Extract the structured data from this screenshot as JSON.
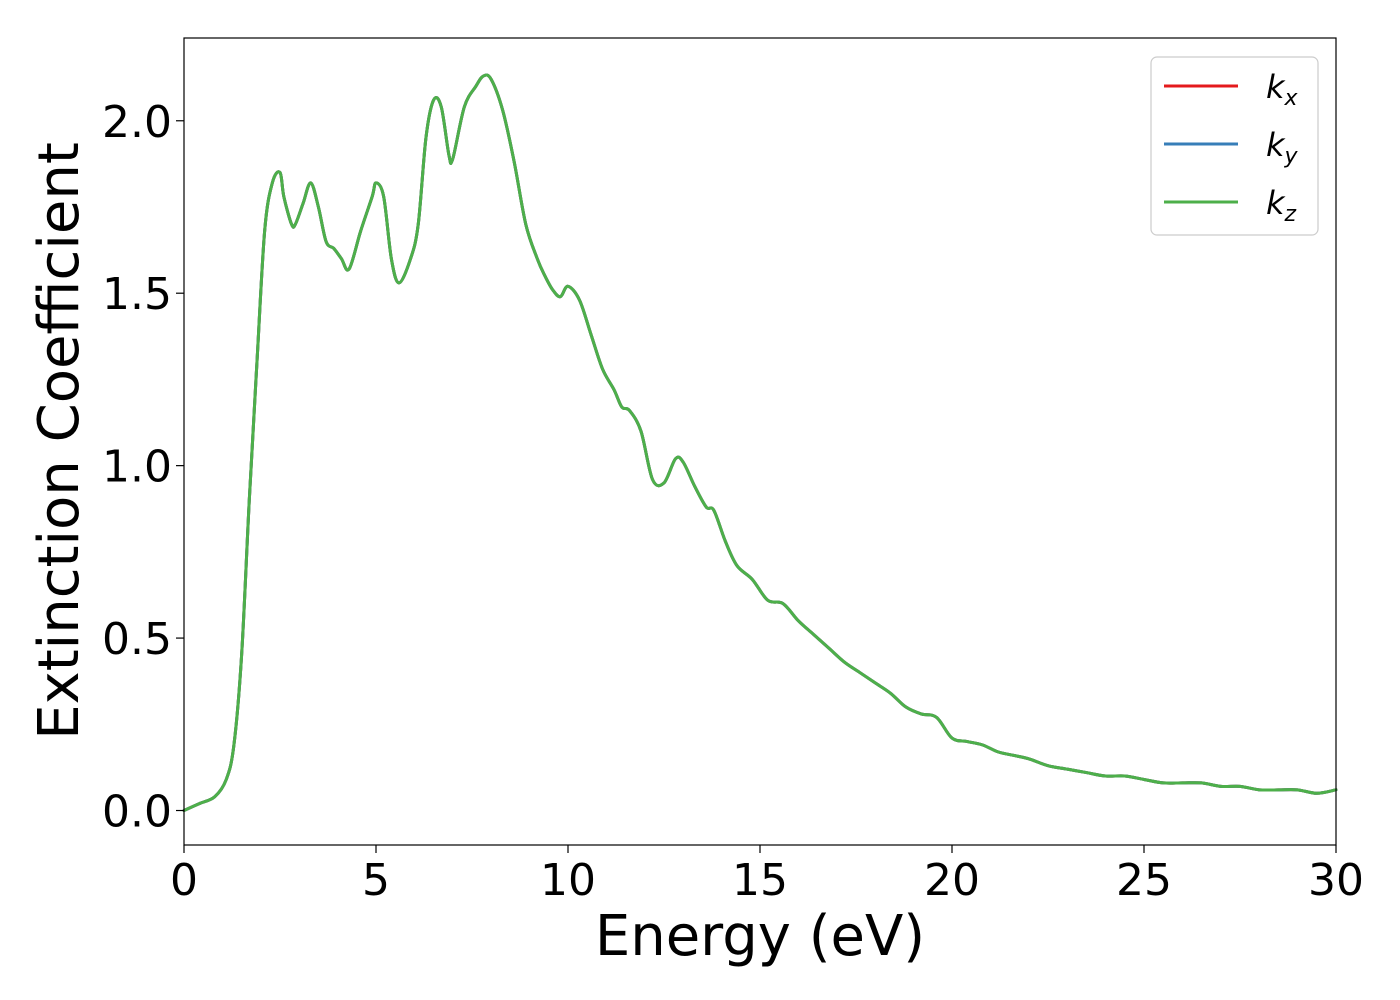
{
  "chart_data": {
    "type": "line",
    "xlabel": "Energy (eV)",
    "ylabel": "Extinction Coefficient",
    "xlim": [
      0,
      30
    ],
    "ylim": [
      -0.1,
      2.24
    ],
    "xticks": [
      0,
      5,
      10,
      15,
      20,
      25,
      30
    ],
    "yticks": [
      0.0,
      0.5,
      1.0,
      1.5,
      2.0
    ],
    "xtick_labels": [
      "0",
      "5",
      "10",
      "15",
      "20",
      "25",
      "30"
    ],
    "ytick_labels": [
      "0.0",
      "0.5",
      "1.0",
      "1.5",
      "2.0"
    ],
    "grid": false,
    "legend_position": "top-right",
    "x": [
      0,
      0.4,
      0.8,
      1.1,
      1.3,
      1.5,
      1.7,
      1.9,
      2.1,
      2.3,
      2.5,
      2.6,
      2.8,
      2.9,
      3.1,
      3.3,
      3.5,
      3.7,
      3.9,
      4.1,
      4.3,
      4.6,
      4.9,
      5.0,
      5.2,
      5.4,
      5.6,
      5.9,
      6.1,
      6.3,
      6.5,
      6.7,
      6.9,
      7.0,
      7.3,
      7.6,
      7.8,
      8.0,
      8.3,
      8.6,
      8.9,
      9.2,
      9.4,
      9.6,
      9.8,
      10.0,
      10.3,
      10.6,
      10.9,
      11.2,
      11.4,
      11.6,
      11.9,
      12.2,
      12.5,
      12.8,
      13.0,
      13.3,
      13.6,
      13.8,
      14.1,
      14.4,
      14.8,
      15.2,
      15.6,
      16.0,
      16.4,
      16.8,
      17.2,
      17.6,
      18.0,
      18.4,
      18.8,
      19.2,
      19.6,
      20.0,
      20.4,
      20.8,
      21.2,
      21.6,
      22.0,
      22.5,
      23.0,
      23.5,
      24.0,
      24.5,
      25.0,
      25.5,
      26.0,
      26.5,
      27.0,
      27.5,
      28.0,
      28.5,
      29.0,
      29.5,
      30.0
    ],
    "series": [
      {
        "name": "k_x",
        "color": "#e41a1c",
        "values": [
          0.0,
          0.02,
          0.04,
          0.09,
          0.19,
          0.45,
          0.9,
          1.3,
          1.68,
          1.82,
          1.85,
          1.78,
          1.7,
          1.7,
          1.76,
          1.82,
          1.75,
          1.65,
          1.63,
          1.6,
          1.57,
          1.68,
          1.78,
          1.82,
          1.78,
          1.6,
          1.53,
          1.6,
          1.7,
          1.95,
          2.06,
          2.04,
          1.9,
          1.89,
          2.04,
          2.1,
          2.13,
          2.12,
          2.03,
          1.88,
          1.7,
          1.6,
          1.55,
          1.51,
          1.49,
          1.52,
          1.48,
          1.38,
          1.28,
          1.22,
          1.17,
          1.16,
          1.1,
          0.96,
          0.95,
          1.02,
          1.01,
          0.94,
          0.88,
          0.87,
          0.78,
          0.71,
          0.67,
          0.61,
          0.6,
          0.55,
          0.51,
          0.47,
          0.43,
          0.4,
          0.37,
          0.34,
          0.3,
          0.28,
          0.27,
          0.21,
          0.2,
          0.19,
          0.17,
          0.16,
          0.15,
          0.13,
          0.12,
          0.11,
          0.1,
          0.1,
          0.09,
          0.08,
          0.08,
          0.08,
          0.07,
          0.07,
          0.06,
          0.06,
          0.06,
          0.05,
          0.06
        ]
      },
      {
        "name": "k_y",
        "color": "#377eb8",
        "values": [
          0.0,
          0.02,
          0.04,
          0.09,
          0.19,
          0.45,
          0.9,
          1.3,
          1.68,
          1.82,
          1.85,
          1.78,
          1.7,
          1.7,
          1.76,
          1.82,
          1.75,
          1.65,
          1.63,
          1.6,
          1.57,
          1.68,
          1.78,
          1.82,
          1.78,
          1.6,
          1.53,
          1.6,
          1.7,
          1.95,
          2.06,
          2.04,
          1.9,
          1.89,
          2.04,
          2.1,
          2.13,
          2.12,
          2.03,
          1.88,
          1.7,
          1.6,
          1.55,
          1.51,
          1.49,
          1.52,
          1.48,
          1.38,
          1.28,
          1.22,
          1.17,
          1.16,
          1.1,
          0.96,
          0.95,
          1.02,
          1.01,
          0.94,
          0.88,
          0.87,
          0.78,
          0.71,
          0.67,
          0.61,
          0.6,
          0.55,
          0.51,
          0.47,
          0.43,
          0.4,
          0.37,
          0.34,
          0.3,
          0.28,
          0.27,
          0.21,
          0.2,
          0.19,
          0.17,
          0.16,
          0.15,
          0.13,
          0.12,
          0.11,
          0.1,
          0.1,
          0.09,
          0.08,
          0.08,
          0.08,
          0.07,
          0.07,
          0.06,
          0.06,
          0.06,
          0.05,
          0.06
        ]
      },
      {
        "name": "k_z",
        "color": "#4daf4a",
        "values": [
          0.0,
          0.02,
          0.04,
          0.09,
          0.19,
          0.45,
          0.9,
          1.3,
          1.68,
          1.82,
          1.85,
          1.78,
          1.7,
          1.7,
          1.76,
          1.82,
          1.75,
          1.65,
          1.63,
          1.6,
          1.57,
          1.68,
          1.78,
          1.82,
          1.78,
          1.6,
          1.53,
          1.6,
          1.7,
          1.95,
          2.06,
          2.04,
          1.9,
          1.89,
          2.04,
          2.1,
          2.13,
          2.12,
          2.03,
          1.88,
          1.7,
          1.6,
          1.55,
          1.51,
          1.49,
          1.52,
          1.48,
          1.38,
          1.28,
          1.22,
          1.17,
          1.16,
          1.1,
          0.96,
          0.95,
          1.02,
          1.01,
          0.94,
          0.88,
          0.87,
          0.78,
          0.71,
          0.67,
          0.61,
          0.6,
          0.55,
          0.51,
          0.47,
          0.43,
          0.4,
          0.37,
          0.34,
          0.3,
          0.28,
          0.27,
          0.21,
          0.2,
          0.19,
          0.17,
          0.16,
          0.15,
          0.13,
          0.12,
          0.11,
          0.1,
          0.1,
          0.09,
          0.08,
          0.08,
          0.08,
          0.07,
          0.07,
          0.06,
          0.06,
          0.06,
          0.05,
          0.06
        ]
      }
    ],
    "legend": [
      {
        "base": "k",
        "sub": "x",
        "color": "#e41a1c"
      },
      {
        "base": "k",
        "sub": "y",
        "color": "#377eb8"
      },
      {
        "base": "k",
        "sub": "z",
        "color": "#4daf4a"
      }
    ]
  }
}
